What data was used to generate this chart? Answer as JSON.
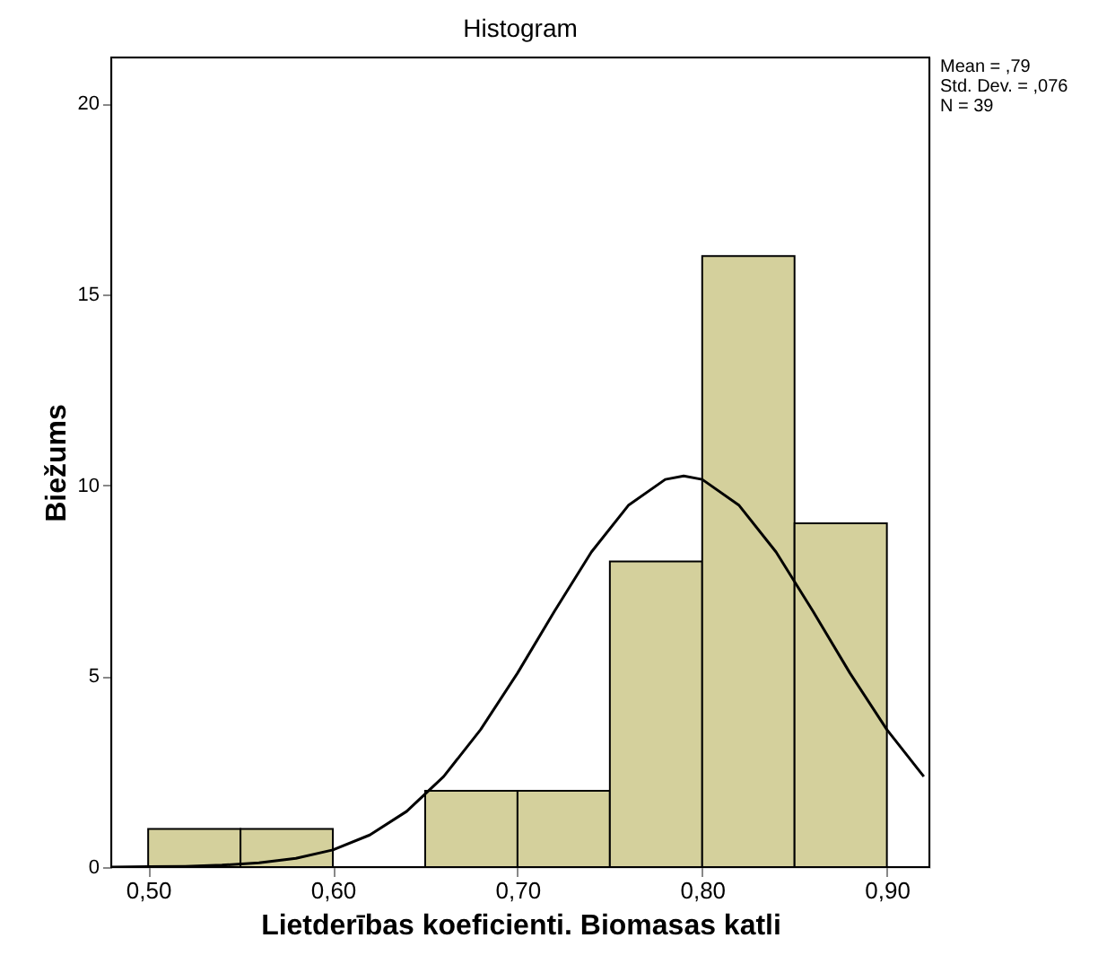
{
  "chart_data": {
    "type": "histogram",
    "title": "Histogram",
    "xlabel": "Lietderības koeficienti. Biomasas katli",
    "ylabel": "Biežums",
    "bins": [
      0.5,
      0.55,
      0.6,
      0.65,
      0.7,
      0.75,
      0.8,
      0.85,
      0.9
    ],
    "values": [
      1,
      1,
      0,
      2,
      2,
      8,
      16,
      9
    ],
    "color": "#d4d09c",
    "series": [
      {
        "type": "line",
        "color": "#000000",
        "x": [
          0.48,
          0.5,
          0.52,
          0.54,
          0.56,
          0.58,
          0.6,
          0.62,
          0.64,
          0.66,
          0.68,
          0.7,
          0.72,
          0.74,
          0.76,
          0.78,
          0.79,
          0.8,
          0.82,
          0.84,
          0.86,
          0.88,
          0.9,
          0.92
        ],
        "values": [
          0.0,
          0.01,
          0.02,
          0.05,
          0.11,
          0.23,
          0.45,
          0.84,
          1.46,
          2.37,
          3.6,
          5.08,
          6.7,
          8.25,
          9.47,
          10.15,
          10.24,
          10.15,
          9.47,
          8.25,
          6.7,
          5.08,
          3.6,
          2.37
        ]
      }
    ],
    "xlim": [
      0.48,
      0.923
    ],
    "ylim": [
      0,
      21.2
    ],
    "xticks": [
      {
        "value": 0.5,
        "label": "0,50"
      },
      {
        "value": 0.6,
        "label": "0,60"
      },
      {
        "value": 0.7,
        "label": "0,70"
      },
      {
        "value": 0.8,
        "label": "0,80"
      },
      {
        "value": 0.9,
        "label": "0,90"
      }
    ],
    "yticks": [
      0,
      5,
      10,
      15,
      20
    ],
    "grid": false,
    "annotations": [
      "Mean = ,79",
      "Std. Dev. = ,076",
      "N = 39"
    ]
  }
}
